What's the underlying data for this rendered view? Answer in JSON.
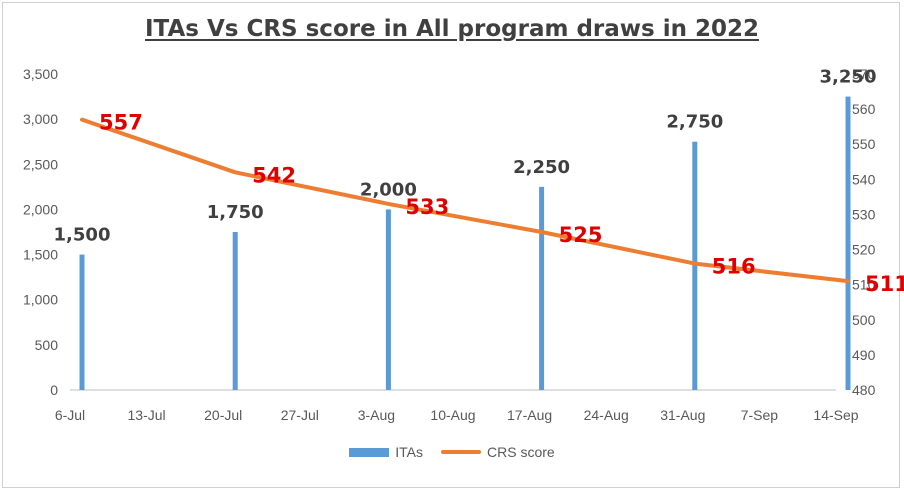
{
  "chart_data": {
    "type": "bar+line",
    "title": "ITAs Vs CRS score in All program draws in 2022",
    "x_ticks": [
      "6-Jul",
      "13-Jul",
      "20-Jul",
      "27-Jul",
      "3-Aug",
      "10-Aug",
      "17-Aug",
      "24-Aug",
      "31-Aug",
      "7-Sep",
      "14-Sep"
    ],
    "y_left": {
      "min": 0,
      "max": 3500,
      "ticks": [
        "0",
        "500",
        "1,000",
        "1,500",
        "2,000",
        "2,500",
        "3,000",
        "3,500"
      ]
    },
    "y_right": {
      "min": 480,
      "max": 570,
      "ticks": [
        "480",
        "490",
        "500",
        "510",
        "520",
        "530",
        "540",
        "550",
        "560",
        "570"
      ]
    },
    "x": [
      "6-Jul",
      "20-Jul",
      "3-Aug",
      "17-Aug",
      "31-Aug",
      "14-Sep"
    ],
    "series": [
      {
        "name": "ITAs",
        "type": "bar",
        "axis": "left",
        "color": "#5b9bd5",
        "values": [
          1500,
          1750,
          2000,
          2250,
          2750,
          3250
        ],
        "labels": [
          "1,500",
          "1,750",
          "2,000",
          "2,250",
          "2,750",
          "3,250"
        ]
      },
      {
        "name": "CRS score",
        "type": "line",
        "axis": "right",
        "color": "#ed7d31",
        "values": [
          557,
          542,
          533,
          525,
          516,
          511
        ],
        "labels": [
          "557",
          "542",
          "533",
          "525",
          "516",
          "511"
        ]
      }
    ],
    "grid": false,
    "legend_position": "bottom"
  }
}
